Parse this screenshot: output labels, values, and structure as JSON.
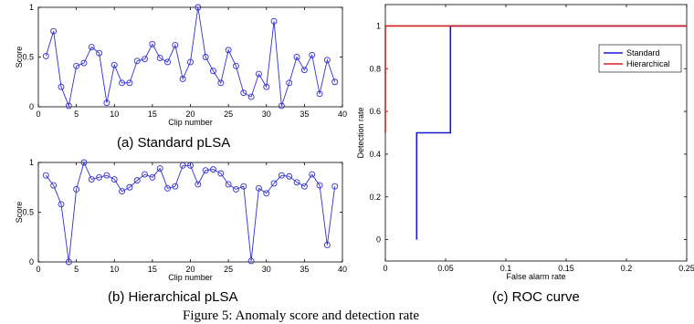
{
  "figure_caption": "Figure 5: Anomaly score and detection rate",
  "chart_data": [
    {
      "type": "line",
      "caption": "(a) Standard pLSA",
      "xlabel": "Clip number",
      "ylabel": "Score",
      "xlim": [
        0,
        40
      ],
      "ylim": [
        0,
        1
      ],
      "xticks": [
        0,
        5,
        10,
        15,
        20,
        25,
        30,
        35,
        40
      ],
      "yticks": [
        0,
        0.5,
        1
      ],
      "color": "#3030d0",
      "marker": "circle",
      "x": [
        1,
        2,
        3,
        4,
        5,
        6,
        7,
        8,
        9,
        10,
        11,
        12,
        13,
        14,
        15,
        16,
        17,
        18,
        19,
        20,
        21,
        22,
        23,
        24,
        25,
        26,
        27,
        28,
        29,
        30,
        31,
        32,
        33,
        34,
        35,
        36,
        37,
        38,
        39
      ],
      "y": [
        0.51,
        0.76,
        0.2,
        0.01,
        0.41,
        0.44,
        0.6,
        0.54,
        0.04,
        0.42,
        0.24,
        0.24,
        0.46,
        0.48,
        0.63,
        0.49,
        0.45,
        0.62,
        0.28,
        0.45,
        1.0,
        0.5,
        0.36,
        0.24,
        0.57,
        0.41,
        0.14,
        0.1,
        0.33,
        0.2,
        0.86,
        0.01,
        0.24,
        0.5,
        0.37,
        0.52,
        0.13,
        0.47,
        0.25
      ]
    },
    {
      "type": "line",
      "caption": "(b) Hierarchical pLSA",
      "xlabel": "Clip number",
      "ylabel": "Score",
      "xlim": [
        0,
        40
      ],
      "ylim": [
        0,
        1
      ],
      "xticks": [
        0,
        5,
        10,
        15,
        20,
        25,
        30,
        35,
        40
      ],
      "yticks": [
        0,
        0.5,
        1
      ],
      "color": "#3030d0",
      "marker": "circle",
      "x": [
        1,
        2,
        3,
        4,
        5,
        6,
        7,
        8,
        9,
        10,
        11,
        12,
        13,
        14,
        15,
        16,
        17,
        18,
        19,
        20,
        21,
        22,
        23,
        24,
        25,
        26,
        27,
        28,
        29,
        30,
        31,
        32,
        33,
        34,
        35,
        36,
        37,
        38,
        39
      ],
      "y": [
        0.87,
        0.77,
        0.58,
        0.0,
        0.73,
        1.0,
        0.83,
        0.85,
        0.87,
        0.83,
        0.71,
        0.75,
        0.82,
        0.88,
        0.85,
        0.94,
        0.74,
        0.76,
        0.97,
        0.97,
        0.78,
        0.92,
        0.93,
        0.89,
        0.78,
        0.73,
        0.76,
        0.01,
        0.74,
        0.69,
        0.79,
        0.87,
        0.86,
        0.8,
        0.76,
        0.88,
        0.77,
        0.17,
        0.76
      ]
    },
    {
      "type": "line",
      "caption": "(c) ROC curve",
      "xlabel": "False alarm rate",
      "ylabel": "Detection rate",
      "xlim": [
        0,
        0.25
      ],
      "ylim": [
        -0.1,
        1.1
      ],
      "xticks": [
        0,
        0.05,
        0.1,
        0.15,
        0.2,
        0.25
      ],
      "yticks": [
        0,
        0.2,
        0.4,
        0.6,
        0.8,
        1
      ],
      "legend_position": "top-right",
      "series": [
        {
          "name": "Standard",
          "color": "#1a1acc",
          "x": [
            0.026,
            0.026,
            0.054,
            0.054,
            0.25
          ],
          "y": [
            0.0,
            0.5,
            0.5,
            1.0,
            1.0
          ]
        },
        {
          "name": "Hierarchical",
          "color": "#d42020",
          "x": [
            0.0,
            0.0,
            0.25
          ],
          "y": [
            0.5,
            1.0,
            1.0
          ]
        }
      ]
    }
  ]
}
